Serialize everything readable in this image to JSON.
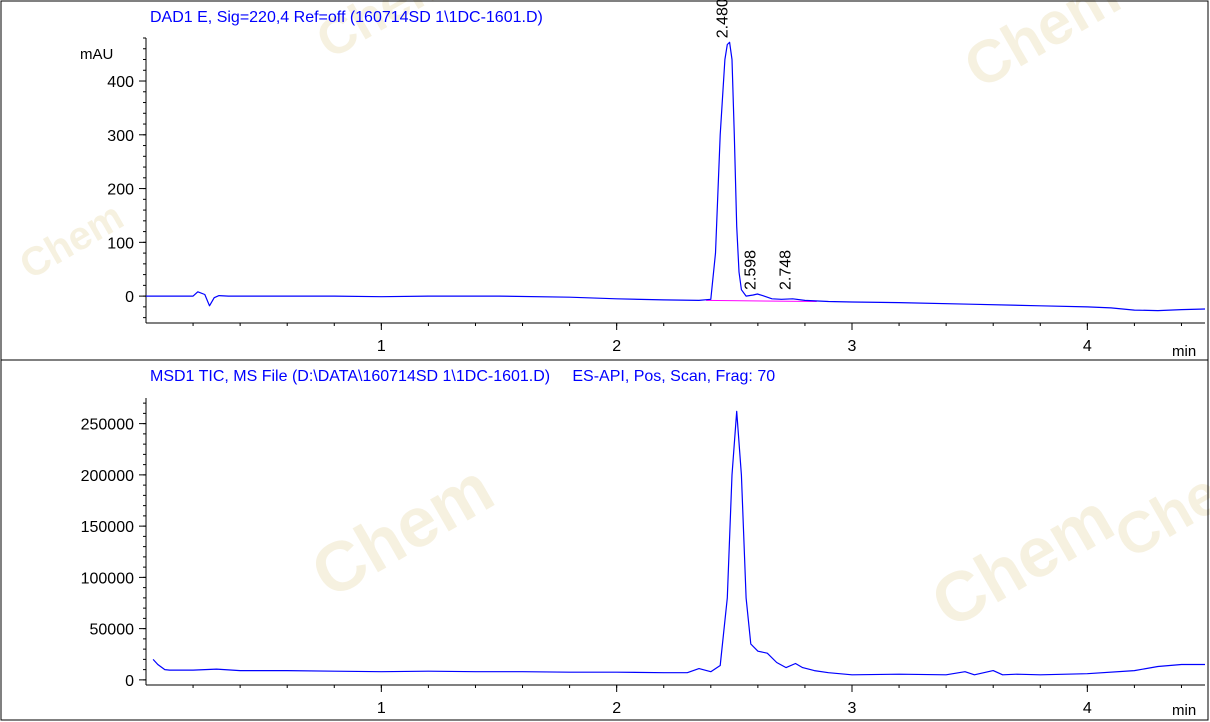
{
  "chart_data": [
    {
      "type": "line",
      "title": "DAD1 E, Sig=220,4 Ref=off (160714SD 1\\1DC-1601.D)",
      "ylabel": "mAU",
      "xlabel": "min",
      "xlim": [
        0,
        4.5
      ],
      "ylim": [
        -50,
        480
      ],
      "x_ticks": [
        1,
        2,
        3,
        4
      ],
      "y_ticks": [
        0,
        100,
        200,
        300,
        400
      ],
      "y_tick_labels": [
        "0",
        "100",
        "200",
        "300",
        "400"
      ],
      "x_tick_labels": [
        "1",
        "2",
        "3",
        "4"
      ],
      "line_color": "#0000ff",
      "baseline_color": "#ff00ff",
      "peak_labels": [
        {
          "text": "2.480",
          "x": 2.48,
          "y": 472
        },
        {
          "text": "2.598",
          "x": 2.598,
          "y": 4
        },
        {
          "text": "2.748",
          "x": 2.748,
          "y": 4
        }
      ],
      "x": [
        0,
        0.15,
        0.2,
        0.22,
        0.25,
        0.27,
        0.29,
        0.31,
        0.35,
        0.5,
        0.8,
        1.0,
        1.2,
        1.5,
        1.8,
        2.0,
        2.2,
        2.35,
        2.4,
        2.42,
        2.44,
        2.46,
        2.47,
        2.48,
        2.49,
        2.5,
        2.51,
        2.52,
        2.53,
        2.55,
        2.58,
        2.598,
        2.62,
        2.66,
        2.7,
        2.748,
        2.8,
        2.9,
        3.0,
        3.2,
        3.5,
        3.8,
        4.0,
        4.1,
        4.2,
        4.3,
        4.4,
        4.5
      ],
      "y": [
        0,
        0,
        0,
        8,
        3,
        -18,
        -3,
        1,
        0,
        0,
        0,
        -1,
        0,
        0,
        -2,
        -5,
        -7,
        -8,
        -6,
        80,
        300,
        440,
        468,
        472,
        440,
        300,
        130,
        45,
        12,
        0,
        2,
        4,
        1,
        -5,
        -6,
        -5,
        -8,
        -10,
        -11,
        -12,
        -15,
        -18,
        -20,
        -22,
        -26,
        -27,
        -25,
        -24
      ],
      "baseline_x": [
        2.38,
        2.85
      ],
      "baseline_y": [
        -8,
        -10
      ]
    },
    {
      "type": "line",
      "title": "MSD1 TIC, MS File (D:\\DATA\\160714SD 1\\1DC-1601.D)     ES-API, Pos, Scan, Frag: 70",
      "xlabel": "min",
      "xlim": [
        0,
        4.5
      ],
      "ylim": [
        -5000,
        275000
      ],
      "x_ticks": [
        1,
        2,
        3,
        4
      ],
      "y_ticks": [
        0,
        50000,
        100000,
        150000,
        200000,
        250000
      ],
      "y_tick_labels": [
        "0",
        "50000",
        "100000",
        "150000",
        "200000",
        "250000"
      ],
      "x_tick_labels": [
        "1",
        "2",
        "3",
        "4"
      ],
      "line_color": "#0000ff",
      "x": [
        0.03,
        0.05,
        0.08,
        0.1,
        0.2,
        0.3,
        0.4,
        0.6,
        0.8,
        1.0,
        1.2,
        1.4,
        1.6,
        1.8,
        2.0,
        2.2,
        2.3,
        2.35,
        2.4,
        2.44,
        2.47,
        2.49,
        2.51,
        2.53,
        2.55,
        2.57,
        2.6,
        2.64,
        2.68,
        2.72,
        2.76,
        2.79,
        2.84,
        2.9,
        3.0,
        3.2,
        3.4,
        3.48,
        3.52,
        3.6,
        3.64,
        3.7,
        3.8,
        4.0,
        4.2,
        4.3,
        4.4,
        4.5
      ],
      "y": [
        20000,
        15000,
        10000,
        9500,
        9500,
        10500,
        9000,
        9000,
        8500,
        8000,
        8500,
        8000,
        8000,
        7500,
        7500,
        7000,
        7000,
        11000,
        8000,
        14000,
        80000,
        200000,
        262000,
        200000,
        80000,
        35000,
        28000,
        26000,
        17000,
        12000,
        16000,
        12000,
        9000,
        7000,
        5000,
        5500,
        5000,
        8000,
        5000,
        9000,
        5000,
        5500,
        5000,
        6000,
        9000,
        13000,
        15000,
        15000
      ]
    }
  ],
  "watermark": {
    "text": "Chem",
    "color": "#efe6c8"
  }
}
